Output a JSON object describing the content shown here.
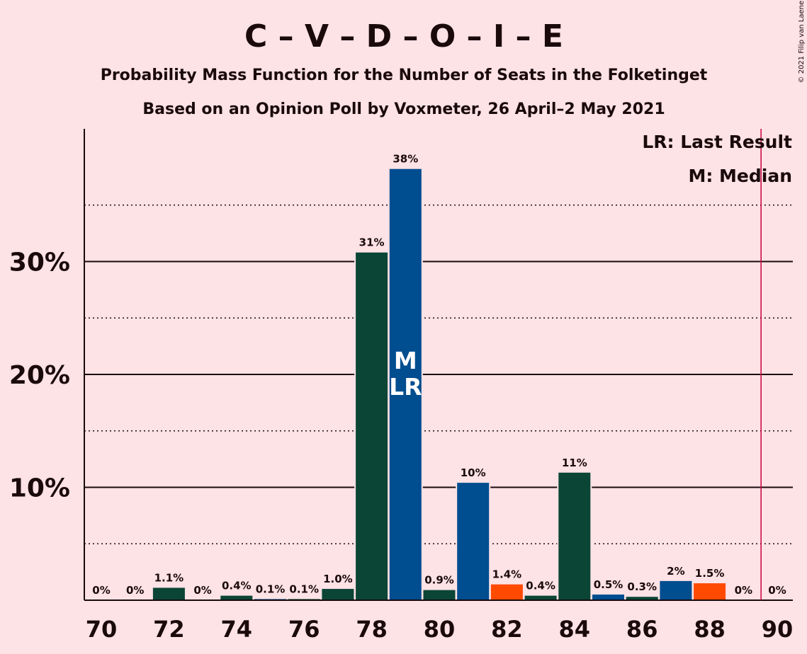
{
  "chart_data": {
    "type": "bar",
    "title": "C – V – D – O – I – E",
    "subtitle": "Probability Mass Function for the Number of Seats in the Folketinget",
    "subtitle2": "Based on an Opinion Poll by Voxmeter, 26 April–2 May 2021",
    "copyright": "© 2021 Filip van Laenen",
    "legend": [
      "LR: Last Result",
      "M: Median"
    ],
    "legend_position": "top-right",
    "xlabel": "",
    "ylabel": "",
    "ylim": [
      0,
      41.5
    ],
    "xlim": [
      70,
      90
    ],
    "x_ticks": [
      "70",
      "72",
      "74",
      "76",
      "78",
      "80",
      "82",
      "84",
      "86",
      "88",
      "90"
    ],
    "y_ticks": [
      {
        "value": 10,
        "label": "10%"
      },
      {
        "value": 20,
        "label": "20%"
      },
      {
        "value": 30,
        "label": "30%"
      }
    ],
    "y_minor_gridlines": [
      5,
      15,
      25,
      35
    ],
    "majority_line_x": 89.5,
    "bars": [
      {
        "x": 70,
        "value": 0,
        "label": "0%",
        "color": "#0B4536"
      },
      {
        "x": 71,
        "value": 0,
        "label": "0%",
        "color": "#004D8F"
      },
      {
        "x": 72,
        "value": 1.1,
        "label": "1.1%",
        "color": "#0B4536"
      },
      {
        "x": 73,
        "value": 0,
        "label": "0%",
        "color": "#004D8F"
      },
      {
        "x": 74,
        "value": 0.4,
        "label": "0.4%",
        "color": "#0B4536"
      },
      {
        "x": 75,
        "value": 0.1,
        "label": "0.1%",
        "color": "#004D8F"
      },
      {
        "x": 76,
        "value": 0.1,
        "label": "0.1%",
        "color": "#0B4536"
      },
      {
        "x": 77,
        "value": 1.0,
        "label": "1.0%",
        "color": "#0B4536"
      },
      {
        "x": 78,
        "value": 30.8,
        "label": "31%",
        "color": "#0B4536"
      },
      {
        "x": 79,
        "value": 38.2,
        "label": "38%",
        "color": "#004D8F",
        "markers": [
          "M",
          "LR"
        ]
      },
      {
        "x": 80,
        "value": 0.9,
        "label": "0.9%",
        "color": "#0B4536"
      },
      {
        "x": 81,
        "value": 10.4,
        "label": "10%",
        "color": "#004D8F"
      },
      {
        "x": 82,
        "value": 1.4,
        "label": "1.4%",
        "color": "#FF4A00"
      },
      {
        "x": 83,
        "value": 0.4,
        "label": "0.4%",
        "color": "#0B4536"
      },
      {
        "x": 84,
        "value": 11.3,
        "label": "11%",
        "color": "#0B4536"
      },
      {
        "x": 85,
        "value": 0.5,
        "label": "0.5%",
        "color": "#004D8F"
      },
      {
        "x": 86,
        "value": 0.3,
        "label": "0.3%",
        "color": "#0B4536"
      },
      {
        "x": 87,
        "value": 1.7,
        "label": "2%",
        "color": "#004D8F"
      },
      {
        "x": 88,
        "value": 1.5,
        "label": "1.5%",
        "color": "#FF4A00"
      },
      {
        "x": 89,
        "value": 0,
        "label": "0%",
        "color": "#004D8F"
      },
      {
        "x": 90,
        "value": 0,
        "label": "0%",
        "color": "#0B4536"
      }
    ],
    "colors": {
      "background": "#FDE2E6",
      "text": "#1a0a0c",
      "majority_line": "#C8003C"
    }
  }
}
